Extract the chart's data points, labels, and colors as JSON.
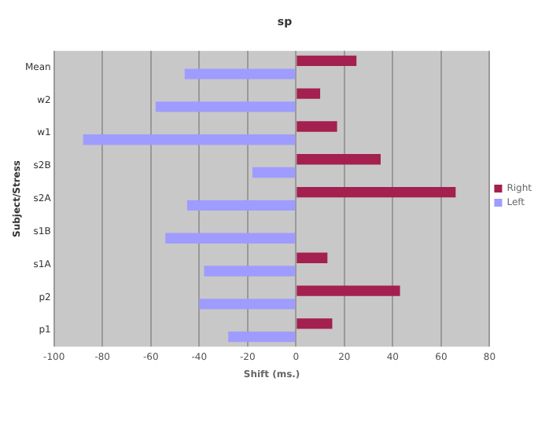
{
  "chart_data": {
    "type": "bar",
    "orientation": "horizontal",
    "title": "sp",
    "xlabel": "Shift (ms.)",
    "ylabel": "Subject/Stress",
    "categories": [
      "Mean",
      "w2",
      "w1",
      "s2B",
      "s2A",
      "s1B",
      "s1A",
      "p2",
      "p1"
    ],
    "series": [
      {
        "name": "Right",
        "color": "#a3204f",
        "values": [
          25,
          10,
          17,
          35,
          66,
          null,
          13,
          43,
          15
        ]
      },
      {
        "name": "Left",
        "color": "#9f9cff",
        "values": [
          -46,
          -58,
          -88,
          -18,
          -45,
          -54,
          -38,
          -40,
          -28
        ]
      }
    ],
    "xlim": [
      -100,
      80
    ],
    "xticks": [
      -100,
      -80,
      -60,
      -40,
      -20,
      0,
      20,
      40,
      60,
      80
    ],
    "grid": "x",
    "legend": "right"
  }
}
